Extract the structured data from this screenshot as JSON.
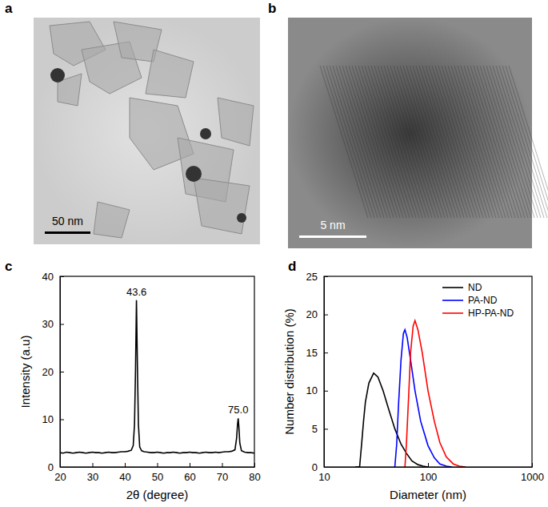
{
  "chart_data": [
    {
      "type": "image",
      "title": "a",
      "annotations": [
        "50 nm"
      ]
    },
    {
      "type": "image",
      "title": "b",
      "annotations": [
        "5 nm"
      ]
    },
    {
      "type": "line",
      "title": "c",
      "x_label": "2θ (degree)",
      "y_label": "Intensity (a.u)",
      "x": [
        20,
        21,
        22,
        23,
        24,
        25,
        26,
        27,
        28,
        29,
        30,
        31,
        32,
        33,
        34,
        35,
        36,
        37,
        38,
        39,
        40,
        41,
        42,
        42.6,
        43.0,
        43.3,
        43.6,
        43.9,
        44.2,
        44.6,
        45.2,
        46,
        47,
        48,
        49,
        50,
        51,
        52,
        53,
        54,
        55,
        56,
        57,
        58,
        59,
        60,
        61,
        62,
        63,
        64,
        65,
        66,
        67,
        68,
        69,
        70,
        71,
        72,
        73,
        74,
        74.5,
        74.8,
        75.0,
        75.2,
        75.5,
        76,
        77,
        78,
        79,
        80
      ],
      "series": [
        {
          "color": "#000000",
          "values": [
            3.0,
            2.9,
            3.1,
            3.0,
            2.9,
            3.0,
            3.1,
            3.0,
            2.9,
            3.0,
            3.1,
            3.0,
            3.0,
            2.9,
            3.0,
            3.1,
            3.0,
            3.0,
            3.1,
            3.2,
            3.2,
            3.3,
            3.5,
            4.5,
            9,
            20,
            35,
            21,
            9,
            4.2,
            3.4,
            3.2,
            3.1,
            3.0,
            3.0,
            3.1,
            3.0,
            2.9,
            3.0,
            3.0,
            3.1,
            3.0,
            2.9,
            3.0,
            3.0,
            3.1,
            3.0,
            3.0,
            2.9,
            3.0,
            3.1,
            3.0,
            3.0,
            3.1,
            3.0,
            3.1,
            3.2,
            3.2,
            3.3,
            3.6,
            6,
            9,
            10.2,
            8.5,
            5,
            3.4,
            3.1,
            3.0,
            3.0,
            2.9
          ]
        }
      ],
      "xlim": [
        20,
        80
      ],
      "xticks": [
        20,
        30,
        40,
        50,
        60,
        70,
        80
      ],
      "ylim": [
        0,
        40
      ],
      "yticks": [
        0,
        10,
        20,
        30,
        40
      ],
      "annotations": [
        {
          "x": 43.6,
          "y": 35,
          "label": "43.6"
        },
        {
          "x": 75.0,
          "y": 10.2,
          "label": "75.0"
        }
      ]
    },
    {
      "type": "line",
      "title": "d",
      "x_label": "Diameter (nm)",
      "y_label": "Number distribution (%)",
      "log": "x",
      "legend": "upper right",
      "series": [
        {
          "name": "ND",
          "color": "#000000",
          "x": [
            20,
            22,
            23,
            24,
            25,
            27,
            30,
            33,
            37,
            42,
            48,
            55,
            62,
            70,
            80,
            90,
            100
          ],
          "values": [
            0,
            0,
            3,
            6,
            8.5,
            11,
            12.3,
            11.8,
            10,
            7.5,
            5,
            3,
            1.8,
            0.8,
            0.3,
            0.1,
            0
          ]
        },
        {
          "name": "PA-ND",
          "color": "#0000ff",
          "x": [
            48,
            50,
            52,
            55,
            58,
            60,
            63,
            68,
            75,
            85,
            100,
            115,
            130,
            150,
            170
          ],
          "values": [
            0,
            3,
            8,
            14,
            17.5,
            18,
            17,
            14,
            10,
            6,
            2.8,
            1.2,
            0.4,
            0.1,
            0
          ]
        },
        {
          "name": "HP-PA-ND",
          "color": "#ff0000",
          "x": [
            60,
            62,
            65,
            68,
            72,
            75,
            80,
            88,
            100,
            115,
            130,
            150,
            175,
            200,
            230
          ],
          "values": [
            0,
            3,
            9,
            15,
            18.5,
            19.2,
            18,
            15,
            10,
            6,
            3.2,
            1.3,
            0.4,
            0.1,
            0
          ]
        }
      ],
      "xlim": [
        10,
        1000
      ],
      "xticks": [
        10,
        100,
        1000
      ],
      "ylim": [
        0,
        25
      ],
      "yticks": [
        0,
        5,
        10,
        15,
        20,
        25
      ]
    }
  ]
}
